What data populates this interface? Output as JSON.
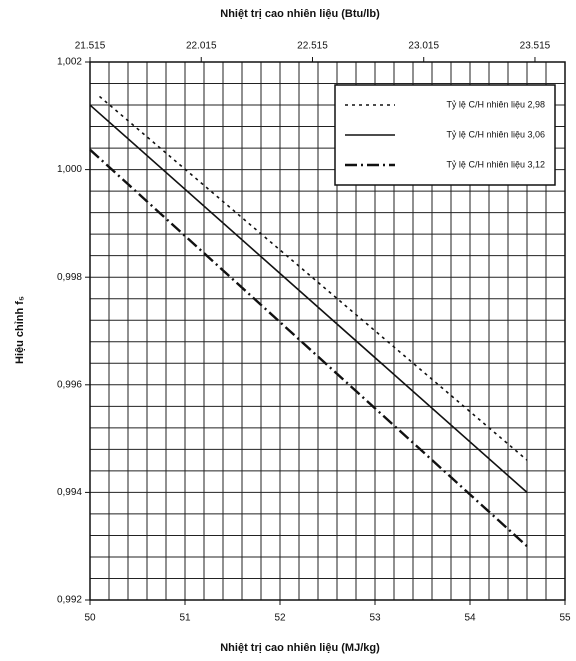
{
  "chart_data": {
    "type": "line",
    "title": "Nhiệt trị cao nhiên liệu (Btu/lb)",
    "xlabel": "Nhiệt trị cao nhiên liệu (MJ/kg)",
    "ylabel": "Hiệu chỉnh f₅",
    "xlim": [
      50,
      55
    ],
    "xticks": [
      50,
      51,
      52,
      53,
      54,
      55
    ],
    "x2lim": [
      21.515,
      23.65
    ],
    "x2ticks": [
      21.515,
      22.015,
      22.515,
      23.015,
      23.515
    ],
    "ylim": [
      0.992,
      1.002
    ],
    "yticks": [
      {
        "value": 0.992,
        "label": "0,992"
      },
      {
        "value": 0.994,
        "label": "0,994"
      },
      {
        "value": 0.996,
        "label": "0,996"
      },
      {
        "value": 0.998,
        "label": "0,998"
      },
      {
        "value": 1.0,
        "label": "1,000"
      },
      {
        "value": 1.002,
        "label": "1,002"
      }
    ],
    "xgrid": [
      50,
      50.2,
      50.4,
      50.6,
      50.8,
      51,
      51.2,
      51.4,
      51.6,
      51.8,
      52,
      52.2,
      52.4,
      52.6,
      52.8,
      53,
      53.2,
      53.4,
      53.6,
      53.8,
      54,
      54.2,
      54.4,
      54.6,
      54.8,
      55
    ],
    "ygrid": [
      0.992,
      0.9924,
      0.9928,
      0.9932,
      0.9936,
      0.994,
      0.9944,
      0.9948,
      0.9952,
      0.9956,
      0.996,
      0.9964,
      0.9968,
      0.9972,
      0.9976,
      0.998,
      0.9984,
      0.9988,
      0.9992,
      0.9996,
      1.0,
      1.0004,
      1.0008,
      1.0012,
      1.0016,
      1.002
    ],
    "grid": true,
    "legend": "upper right",
    "series": [
      {
        "name": "Tỷ lệ C/H nhiên liệu 2,98",
        "color": "#111111",
        "style": "dotted",
        "x": [
          50.1,
          54.6
        ],
        "values": [
          1.00136,
          0.9946
        ]
      },
      {
        "name": "Tỷ lệ C/H nhiên liệu 3,06",
        "color": "#111111",
        "style": "solid",
        "x": [
          50,
          54.6
        ],
        "values": [
          1.0012,
          0.994
        ]
      },
      {
        "name": "Tỷ lệ C/H nhiên liệu 3,12",
        "color": "#111111",
        "style": "dashdot",
        "x": [
          50,
          54.6
        ],
        "values": [
          1.00037,
          0.993
        ]
      }
    ]
  }
}
